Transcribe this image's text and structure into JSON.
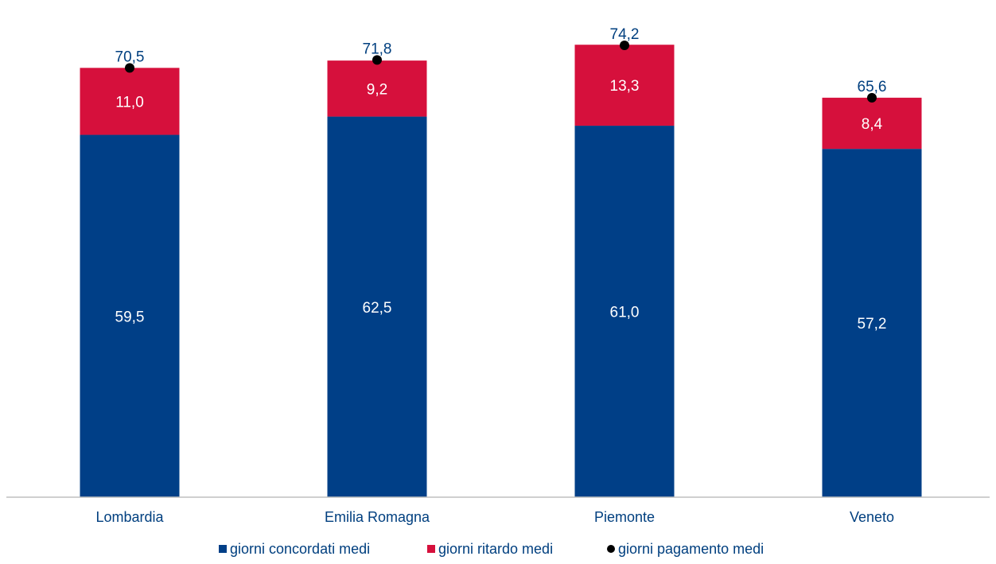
{
  "chart_data": {
    "type": "bar",
    "stacked": true,
    "categories": [
      "Lombardia",
      "Emilia Romagna",
      "Piemonte",
      "Veneto"
    ],
    "series": [
      {
        "name": "giorni concordati medi",
        "values": [
          59.5,
          62.5,
          61.0,
          57.2
        ],
        "labels": [
          "59,5",
          "62,5",
          "61,0",
          "57,2"
        ],
        "color": "#003f87"
      },
      {
        "name": "giorni ritardo medi",
        "values": [
          11.0,
          9.2,
          13.3,
          8.4
        ],
        "labels": [
          "11,0",
          "9,2",
          "13,3",
          "8,4"
        ],
        "color": "#d6103c"
      }
    ],
    "totals": {
      "name": "giorni pagamento medi",
      "values": [
        70.5,
        71.8,
        74.2,
        65.6
      ],
      "labels": [
        "70,5",
        "71,8",
        "74,2",
        "65,6"
      ],
      "color": "#000000"
    },
    "ylim": [
      0,
      80
    ],
    "grid": false,
    "legend": "bottom",
    "label_color": "#003f7f"
  }
}
